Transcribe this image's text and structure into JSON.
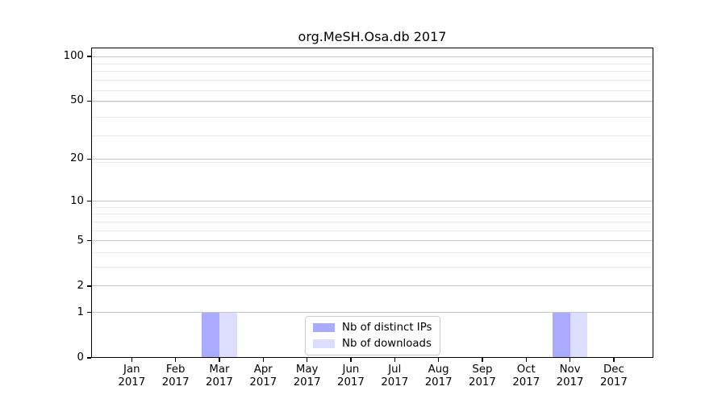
{
  "title": "org.MeSH.Osa.db 2017",
  "chart_data": {
    "type": "bar",
    "title": "org.MeSH.Osa.db 2017",
    "x_months": [
      "Jan",
      "Feb",
      "Mar",
      "Apr",
      "May",
      "Jun",
      "Jul",
      "Aug",
      "Sep",
      "Oct",
      "Nov",
      "Dec"
    ],
    "x_year": "2017",
    "series": [
      {
        "name": "Nb of distinct IPs",
        "color": "#aaaaff",
        "values": [
          0,
          0,
          1,
          0,
          0,
          0,
          0,
          0,
          0,
          0,
          1,
          0
        ]
      },
      {
        "name": "Nb of downloads",
        "color": "#ddddff",
        "values": [
          0,
          0,
          1,
          0,
          0,
          0,
          0,
          0,
          0,
          0,
          1,
          0
        ]
      }
    ],
    "yscale": "log1p",
    "ylim": [
      0,
      100
    ],
    "yticks": [
      0,
      1,
      2,
      5,
      10,
      20,
      50,
      100
    ],
    "yminor": [
      2,
      3,
      4,
      5,
      6,
      7,
      8,
      9,
      19,
      29,
      39,
      49,
      59,
      69,
      79,
      89,
      99
    ],
    "grid": "horizontal",
    "legend_position": "lower center",
    "xlabel": "",
    "ylabel": ""
  },
  "colors": {
    "major_grid": "#c6c6c6",
    "minor_grid": "#eaeaea",
    "axis": "#000000",
    "text": "#000000",
    "legend_border": "#cccccc",
    "legend_bg": "#ffffff"
  }
}
